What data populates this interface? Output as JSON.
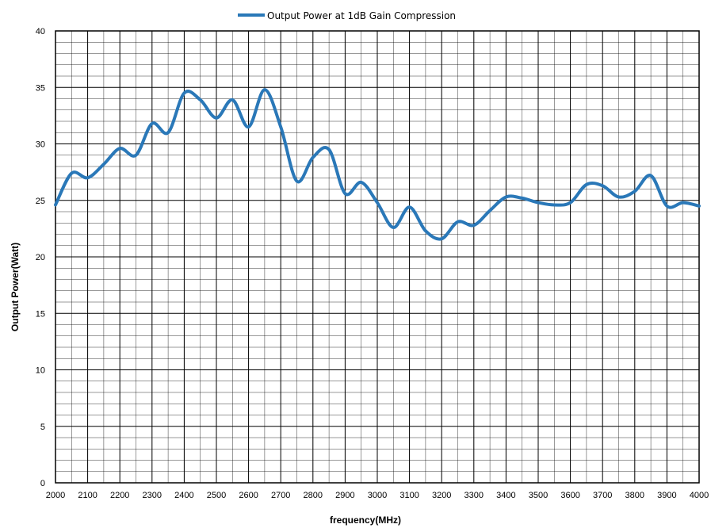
{
  "chart_data": {
    "type": "line",
    "title": "",
    "xlabel": "frequency(MHz)",
    "ylabel": "Output Power(Watt)",
    "xlim": [
      2000,
      4000
    ],
    "ylim": [
      0,
      40
    ],
    "x_ticks": [
      "2000",
      "2100",
      "2200",
      "2300",
      "2400",
      "2500",
      "2600",
      "2700",
      "2800",
      "2900",
      "3000",
      "3100",
      "3200",
      "3300",
      "3400",
      "3500",
      "3600",
      "3700",
      "3800",
      "3900",
      "4000"
    ],
    "x_tick_values": [
      2000,
      2100,
      2200,
      2300,
      2400,
      2500,
      2600,
      2700,
      2800,
      2900,
      3000,
      3100,
      3200,
      3300,
      3400,
      3500,
      3600,
      3700,
      3800,
      3900,
      4000
    ],
    "y_ticks": [
      "0",
      "5",
      "10",
      "15",
      "20",
      "25",
      "30",
      "35",
      "40"
    ],
    "y_tick_values": [
      0,
      5,
      10,
      15,
      20,
      25,
      30,
      35,
      40
    ],
    "x_minor_step": 50,
    "y_minor_step": 1,
    "grid": true,
    "legend_position": "top-center",
    "colors": {
      "series": "#2a78b8",
      "grid": "#000000",
      "background": "#ffffff"
    },
    "series": [
      {
        "name": "Output Power at 1dB Gain Compression",
        "x": [
          2000,
          2050,
          2100,
          2150,
          2200,
          2250,
          2300,
          2350,
          2400,
          2450,
          2500,
          2550,
          2600,
          2650,
          2700,
          2750,
          2800,
          2850,
          2900,
          2950,
          3000,
          3050,
          3100,
          3150,
          3200,
          3250,
          3300,
          3350,
          3400,
          3450,
          3500,
          3550,
          3600,
          3650,
          3700,
          3750,
          3800,
          3850,
          3900,
          3950,
          4000
        ],
        "values": [
          24.6,
          27.4,
          27.0,
          28.2,
          29.6,
          29.0,
          31.8,
          31.0,
          34.5,
          33.9,
          32.3,
          33.9,
          31.5,
          34.8,
          31.5,
          26.7,
          28.8,
          29.5,
          25.6,
          26.6,
          24.8,
          22.6,
          24.4,
          22.3,
          21.6,
          23.1,
          22.8,
          24.1,
          25.3,
          25.2,
          24.8,
          24.6,
          24.8,
          26.4,
          26.3,
          25.3,
          25.8,
          27.2,
          24.5,
          24.8,
          24.5
        ]
      }
    ]
  }
}
